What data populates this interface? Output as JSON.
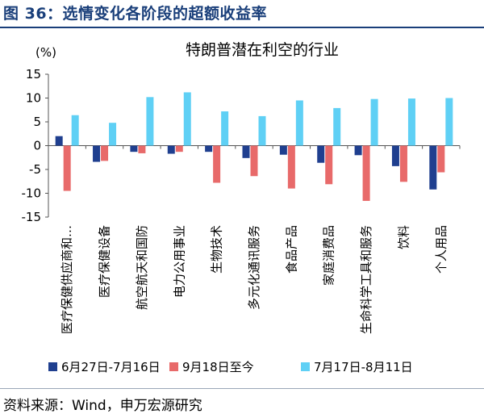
{
  "figure_title": "图 36：选情变化各阶段的超额收益率",
  "source_note": "资料来源：Wind，申万宏源研究",
  "chart_data": {
    "type": "bar",
    "title": "特朗普潜在利空的行业",
    "ylabel": "(%)",
    "xlabel": "",
    "ylim": [
      -15,
      15
    ],
    "yticks": [
      -15,
      -10,
      -5,
      0,
      5,
      10,
      15
    ],
    "grid": false,
    "legend_position": "bottom",
    "categories": [
      "医疗保健供应商和…",
      "医疗保健设备",
      "航空航天和国防",
      "电力公用事业",
      "生物技术",
      "多元化通讯服务",
      "食品产品",
      "家庭消费品",
      "生命科学工具和服务",
      "饮料",
      "个人用品"
    ],
    "series": [
      {
        "name": "6月27日-7月16日",
        "color": "#1f3f8f",
        "values": [
          2.0,
          -3.4,
          -1.3,
          -1.7,
          -1.3,
          -2.6,
          -1.9,
          -3.6,
          -2.0,
          -4.3,
          -9.2
        ]
      },
      {
        "name": "9月18日至今",
        "color": "#e86a6a",
        "values": [
          -9.5,
          -3.2,
          -1.6,
          -1.3,
          -7.8,
          -6.4,
          -9.0,
          -8.1,
          -11.6,
          -7.6,
          -5.6
        ]
      },
      {
        "name": "7月17日-8月11日",
        "color": "#5fd0f5",
        "values": [
          6.4,
          4.8,
          10.2,
          11.2,
          7.2,
          6.2,
          9.5,
          7.9,
          9.8,
          9.9,
          10.0
        ]
      }
    ]
  }
}
